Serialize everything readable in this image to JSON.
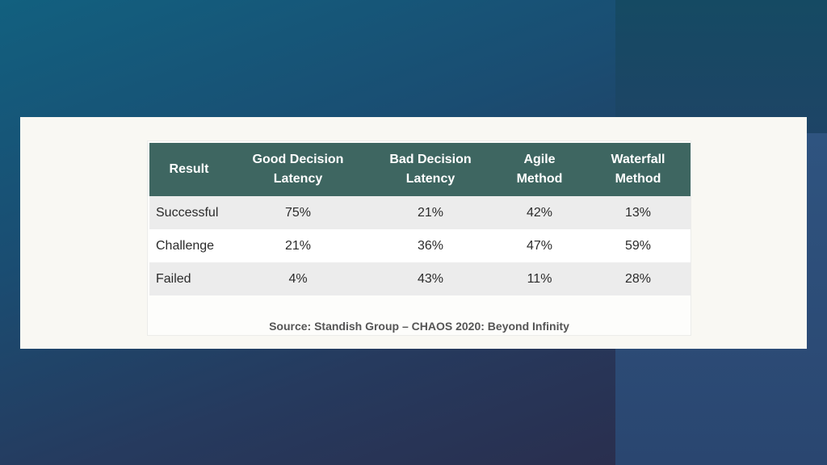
{
  "table": {
    "headers": [
      {
        "line1": "Result",
        "line2": ""
      },
      {
        "line1": "Good Decision",
        "line2": "Latency"
      },
      {
        "line1": "Bad Decision",
        "line2": "Latency"
      },
      {
        "line1": "Agile",
        "line2": "Method"
      },
      {
        "line1": "Waterfall",
        "line2": "Method"
      }
    ],
    "rows": [
      [
        "Successful",
        "75%",
        "21%",
        "42%",
        "13%"
      ],
      [
        "Challenge",
        "21%",
        "36%",
        "47%",
        "59%"
      ],
      [
        "Failed",
        "4%",
        "43%",
        "11%",
        "28%"
      ]
    ],
    "source": "Source: Standish Group – CHAOS 2020: Beyond Infinity"
  },
  "colors": {
    "header_bg": "#3e6661",
    "row_shade": "#ececec",
    "card_bg": "#f9f8f3"
  }
}
